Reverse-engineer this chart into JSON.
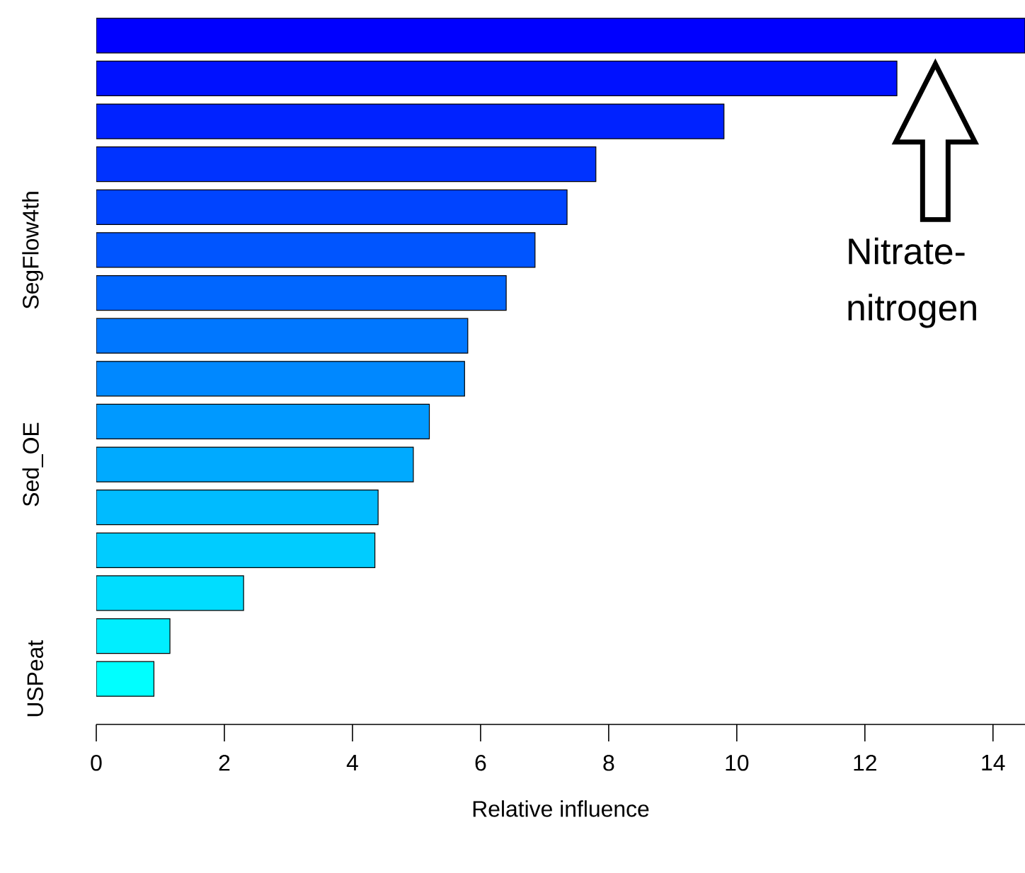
{
  "chart_data": {
    "type": "bar",
    "orientation": "horizontal",
    "xlabel": "Relative influence",
    "categories": [
      null,
      null,
      null,
      null,
      null,
      "SegFlow4th",
      null,
      null,
      null,
      null,
      "Sed_OE",
      null,
      null,
      null,
      null,
      "USPeat"
    ],
    "values": [
      14.5,
      12.5,
      9.8,
      7.8,
      7.35,
      6.85,
      6.4,
      5.8,
      5.75,
      5.2,
      4.95,
      4.4,
      4.35,
      2.3,
      1.15,
      0.9
    ],
    "colors": [
      "#0000ff",
      "#0011ff",
      "#0022ff",
      "#0033ff",
      "#0044ff",
      "#0055ff",
      "#0066ff",
      "#0077ff",
      "#0088ff",
      "#0099ff",
      "#00aaff",
      "#00bbff",
      "#00ccff",
      "#00ddff",
      "#00eeff",
      "#00ffff"
    ],
    "xlim": [
      0,
      14.5
    ],
    "xticks": [
      0,
      2,
      4,
      6,
      8,
      10,
      12,
      14
    ],
    "annotations": [
      "Nitrate-nitrogen"
    ]
  }
}
